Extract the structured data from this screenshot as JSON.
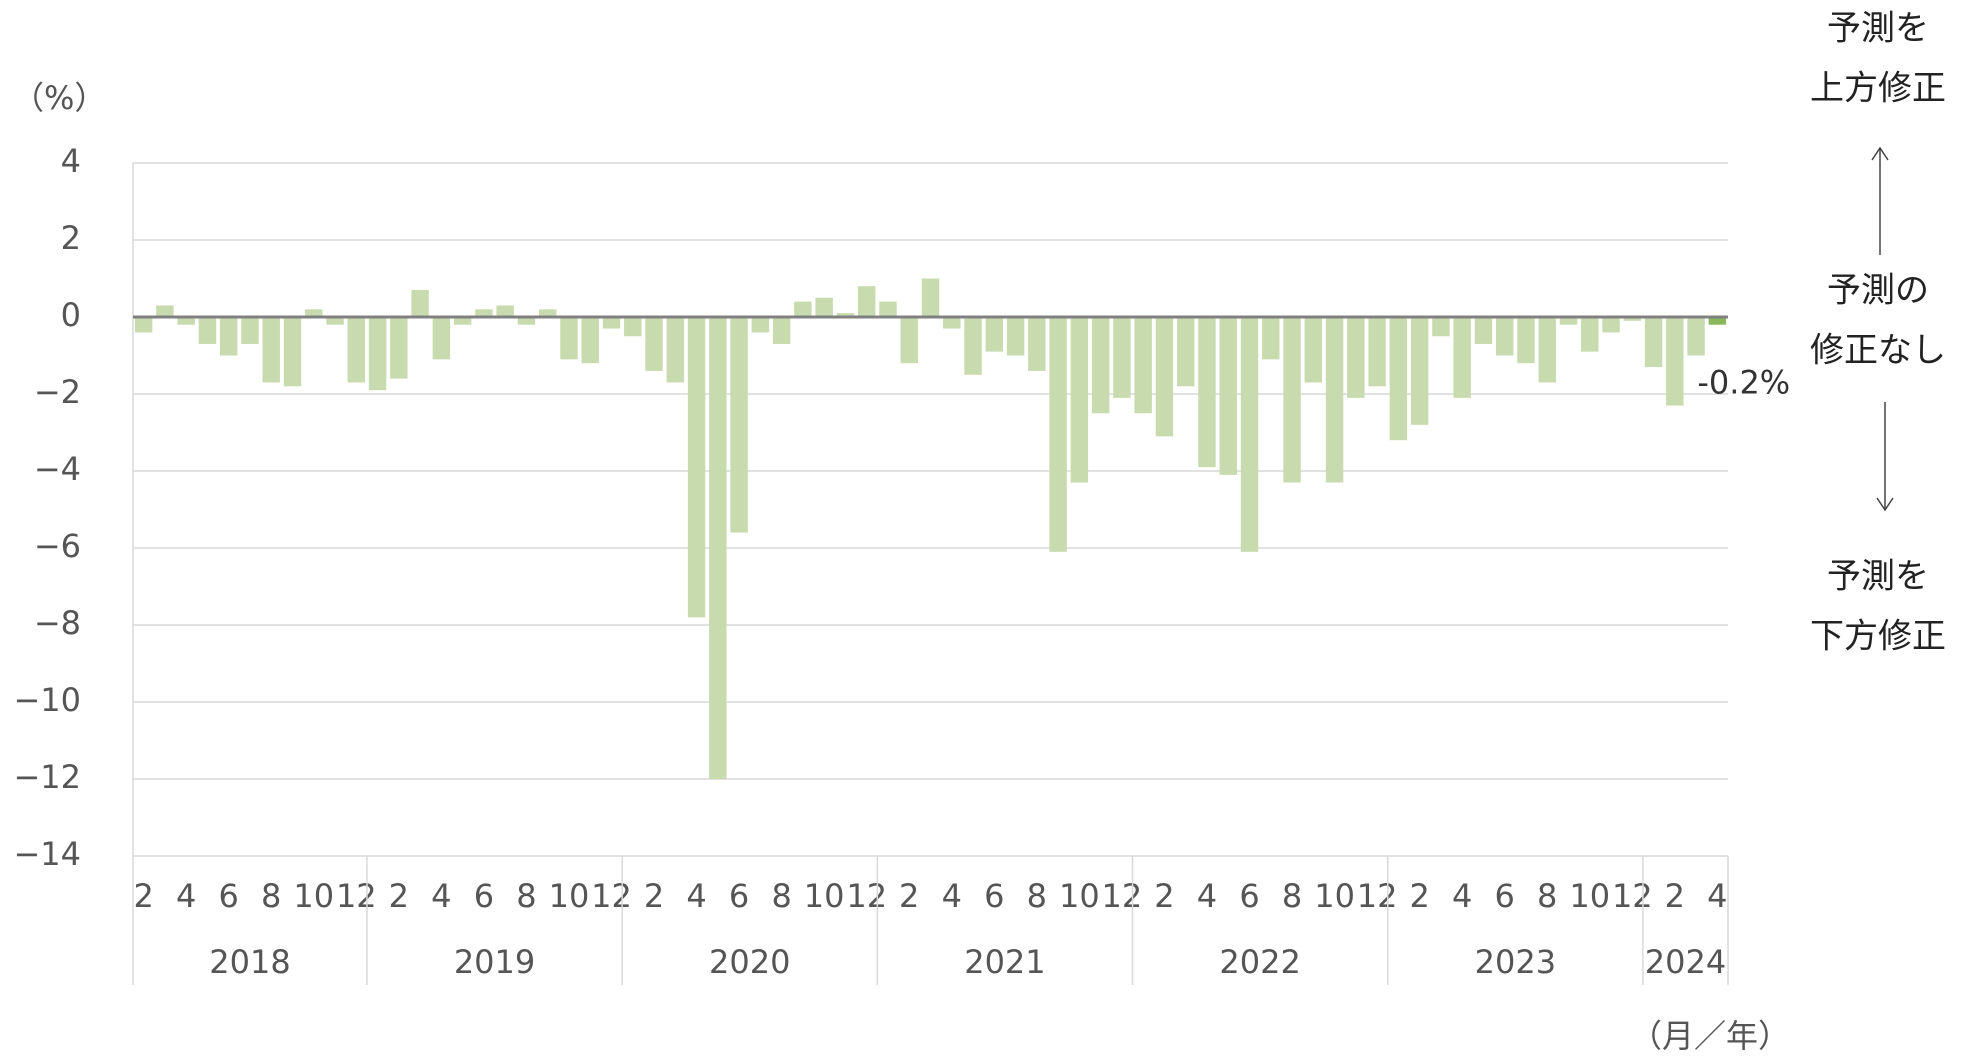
{
  "chart_data": {
    "type": "bar",
    "y_unit": "（%）",
    "x_unit": "（月／年）",
    "categories": [
      "2",
      null,
      "4",
      null,
      "6",
      null,
      "8",
      null,
      "10",
      null,
      "12",
      null,
      "2",
      null,
      "4",
      null,
      "6",
      null,
      "8",
      null,
      "10",
      null,
      "12",
      null,
      "2",
      null,
      "4",
      null,
      "6",
      null,
      "8",
      null,
      "10",
      null,
      "12",
      null,
      "2",
      null,
      "4",
      null,
      "6",
      null,
      "8",
      null,
      "10",
      null,
      "12",
      null,
      "2",
      null,
      "4",
      null,
      "6",
      null,
      "8",
      null,
      "10",
      null,
      "12",
      null,
      "2",
      null,
      "4",
      null,
      "6",
      null,
      "8",
      null,
      "10",
      null,
      "12",
      null,
      "2",
      null,
      "4"
    ],
    "years": [
      "2018",
      "2019",
      "2020",
      "2021",
      "2022",
      "2023",
      "2024"
    ],
    "values": [
      -0.4,
      0.3,
      -0.2,
      -0.7,
      -1.0,
      -0.7,
      -1.7,
      -1.8,
      0.2,
      -0.2,
      -1.7,
      -1.9,
      -1.6,
      0.7,
      -1.1,
      -0.2,
      0.2,
      0.3,
      -0.2,
      0.2,
      -1.1,
      -1.2,
      -0.3,
      -0.5,
      -1.4,
      -1.7,
      -7.8,
      -12.0,
      -5.6,
      -0.4,
      -0.7,
      0.4,
      0.5,
      0.1,
      0.8,
      0.4,
      -1.2,
      1.0,
      -0.3,
      -1.5,
      -0.9,
      -1.0,
      -1.4,
      -6.1,
      -4.3,
      -2.5,
      -2.1,
      -2.5,
      -3.1,
      -1.8,
      -3.9,
      -4.1,
      -6.1,
      -1.1,
      -4.3,
      -1.7,
      -4.3,
      -2.1,
      -1.8,
      -3.2,
      -2.8,
      -0.5,
      -2.1,
      -0.7,
      -1.0,
      -1.2,
      -1.7,
      -0.2,
      -0.9,
      -0.4,
      -0.1,
      -1.3,
      -2.3,
      -1.0,
      -0.2
    ],
    "value_labels": [
      null,
      null,
      null,
      null,
      null,
      null,
      null,
      null,
      null,
      null,
      null,
      null,
      null,
      null,
      null,
      null,
      null,
      null,
      null,
      null,
      null,
      null,
      null,
      null,
      null,
      null,
      null,
      null,
      null,
      null,
      null,
      null,
      null,
      null,
      null,
      null,
      null,
      null,
      null,
      null,
      null,
      null,
      null,
      null,
      null,
      null,
      null,
      null,
      null,
      null,
      null,
      null,
      null,
      null,
      null,
      null,
      null,
      null,
      null,
      null,
      null,
      null,
      null,
      null,
      null,
      null,
      null,
      null,
      null,
      null,
      null,
      null,
      null,
      null,
      "-0.2%"
    ],
    "color": "#c8dbae",
    "highlight_color": "#88b85a",
    "ylim": [
      -14,
      4
    ],
    "yticks": [
      4,
      2,
      0,
      {
        "value": -2,
        "label": "−2"
      },
      {
        "value": -4,
        "label": "−4"
      },
      {
        "value": -6,
        "label": "−6"
      },
      {
        "value": -8,
        "label": "−8"
      },
      {
        "value": -10,
        "label": "−10"
      },
      {
        "value": -12,
        "label": "−12"
      },
      {
        "value": -14,
        "label": "−14"
      }
    ],
    "grid": true,
    "annotations": {
      "up": [
        "予測を",
        "上方修正"
      ],
      "none": [
        "予測の",
        "修正なし"
      ],
      "down": [
        "予測を",
        "下方修正"
      ]
    }
  }
}
